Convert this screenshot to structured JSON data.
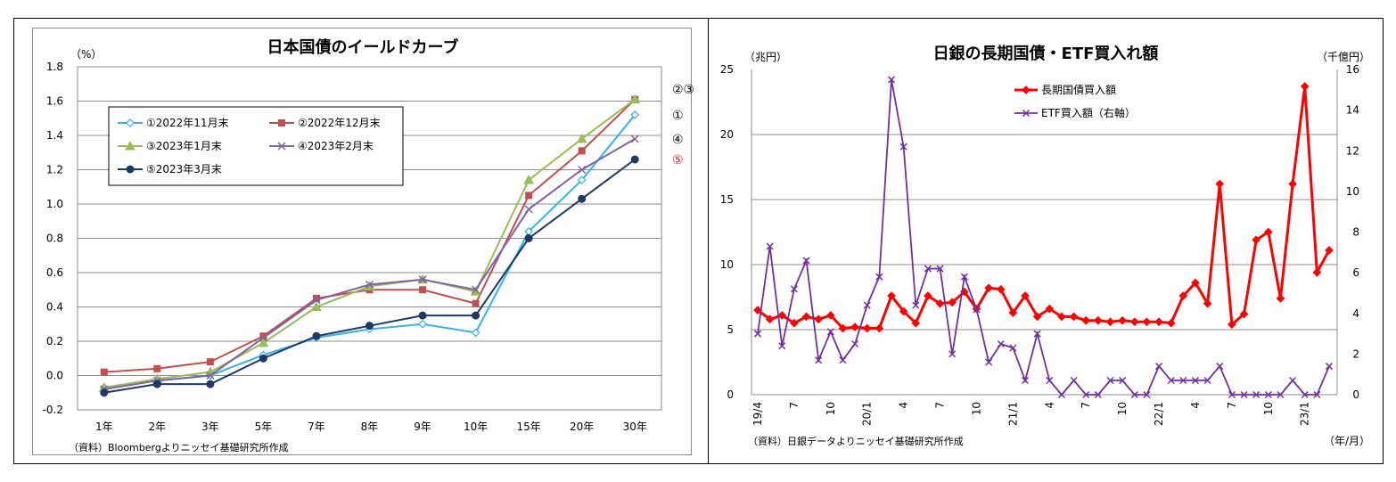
{
  "chart_data": [
    {
      "type": "line",
      "title": "日本国債のイールドカーブ",
      "ylabel": "（%）",
      "ylim": [
        -0.2,
        1.8
      ],
      "yticks": [
        "1.8",
        "1.6",
        "1.4",
        "1.2",
        "1.0",
        "0.8",
        "0.6",
        "0.4",
        "0.2",
        "0.0",
        "-0.2"
      ],
      "categories": [
        "1年",
        "2年",
        "3年",
        "5年",
        "7年",
        "8年",
        "9年",
        "10年",
        "15年",
        "20年",
        "30年"
      ],
      "series": [
        {
          "name": "①2022年11月末",
          "color": "#33b3e6",
          "marker": "diamond-open",
          "values": [
            -0.07,
            -0.03,
            0.0,
            0.12,
            0.22,
            0.27,
            0.3,
            0.25,
            0.84,
            1.14,
            1.52
          ]
        },
        {
          "name": "②2022年12月末",
          "color": "#c0504d",
          "marker": "square",
          "values": [
            0.02,
            0.04,
            0.08,
            0.23,
            0.45,
            0.5,
            0.5,
            0.42,
            1.05,
            1.31,
            1.61
          ]
        },
        {
          "name": "③2023年1月末",
          "color": "#9bbb59",
          "marker": "triangle",
          "values": [
            -0.07,
            -0.02,
            0.02,
            0.19,
            0.4,
            0.52,
            0.56,
            0.49,
            1.14,
            1.38,
            1.61
          ]
        },
        {
          "name": "④2023年2月末",
          "color": "#8064a2",
          "marker": "x",
          "values": [
            -0.08,
            -0.03,
            0.0,
            0.22,
            0.44,
            0.53,
            0.56,
            0.5,
            0.97,
            1.2,
            1.38
          ]
        },
        {
          "name": "⑤2023年3月末",
          "color": "#1f3864",
          "marker": "circle",
          "values": [
            -0.1,
            -0.05,
            -0.05,
            0.1,
            0.23,
            0.29,
            0.35,
            0.35,
            0.8,
            1.03,
            1.26
          ]
        }
      ],
      "end_labels": [
        {
          "text": "②③",
          "color": "#000000",
          "y": 1.67
        },
        {
          "text": "①",
          "color": "#000000",
          "y": 1.52
        },
        {
          "text": "④",
          "color": "#000000",
          "y": 1.38
        },
        {
          "text": "⑤",
          "color": "#e02020",
          "y": 1.26
        }
      ],
      "source": "（資料）Bloombergよりニッセイ基礎研究所作成",
      "grid": true,
      "legend_position": "upper-left"
    },
    {
      "type": "line",
      "title": "日銀の長期国債・ETF買入れ額",
      "ylabel_left": "（兆円）",
      "ylabel_right": "（千億円）",
      "ylim_left": [
        0,
        25
      ],
      "ylim_right": [
        0,
        16
      ],
      "yticks_left": [
        "25",
        "20",
        "15",
        "10",
        "5",
        "0"
      ],
      "yticks_right": [
        "16",
        "14",
        "12",
        "10",
        "8",
        "6",
        "4",
        "2",
        "0"
      ],
      "x_tick_labels": [
        "19/4",
        "7",
        "10",
        "20/1",
        "4",
        "7",
        "10",
        "21/1",
        "4",
        "7",
        "10",
        "22/1",
        "4",
        "7",
        "10",
        "23/1"
      ],
      "xlabel": "（年/月）",
      "series": [
        {
          "name": "長期国債買入額",
          "axis": "left",
          "color": "#ff0000",
          "marker": "diamond",
          "values": [
            6.5,
            5.8,
            6.1,
            5.5,
            6.0,
            5.8,
            6.1,
            5.1,
            5.2,
            5.1,
            5.1,
            7.6,
            6.4,
            5.5,
            7.6,
            7.0,
            7.1,
            7.9,
            6.6,
            8.2,
            8.1,
            6.3,
            7.6,
            6.0,
            6.6,
            6.0,
            6.0,
            5.7,
            5.7,
            5.6,
            5.7,
            5.6,
            5.6,
            5.6,
            5.5,
            7.6,
            8.6,
            7.0,
            16.2,
            5.4,
            6.2,
            11.9,
            12.5,
            7.4,
            16.2,
            23.7,
            9.4,
            11.1
          ]
        },
        {
          "name": "ETF買入額（右軸）",
          "axis": "right",
          "color": "#7030a0",
          "marker": "x",
          "values": [
            3.0,
            7.3,
            2.4,
            5.2,
            6.6,
            1.7,
            3.1,
            1.7,
            2.5,
            4.4,
            5.8,
            15.5,
            12.2,
            4.4,
            6.2,
            6.2,
            2.0,
            5.8,
            4.2,
            1.6,
            2.5,
            2.3,
            0.7,
            3.0,
            0.7,
            0.0,
            0.7,
            0.0,
            0.0,
            0.7,
            0.7,
            0.0,
            0.0,
            1.4,
            0.7,
            0.7,
            0.7,
            0.7,
            1.4,
            0.0,
            0.0,
            0.0,
            0.0,
            0.0,
            0.7,
            0.0,
            0.0,
            1.4
          ]
        }
      ],
      "source": "（資料）日銀データよりニッセイ基礎研究所作成",
      "grid": true,
      "legend_position": "upper-right"
    }
  ]
}
